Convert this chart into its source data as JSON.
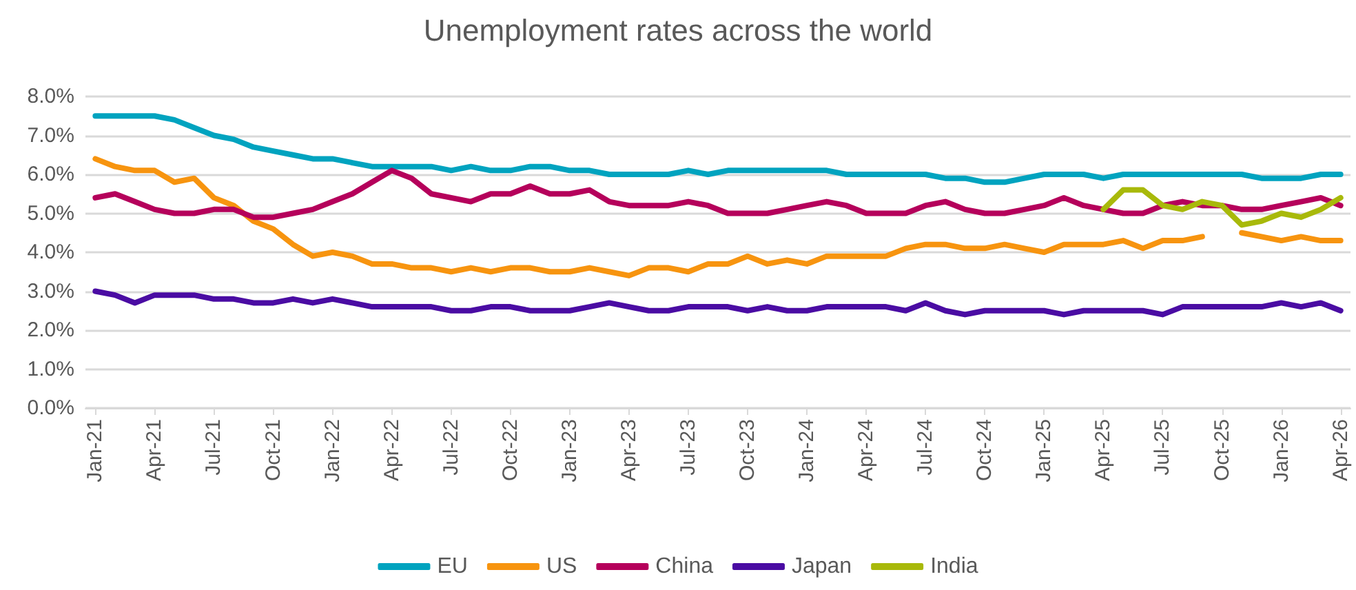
{
  "chart_data": {
    "type": "line",
    "title": "Unemployment rates across the world",
    "categories": [
      "Jan-21",
      null,
      null,
      "Apr-21",
      null,
      null,
      "Jul-21",
      null,
      null,
      "Oct-21",
      null,
      null,
      "Jan-22",
      null,
      null,
      "Apr-22",
      null,
      null,
      "Jul-22",
      null,
      null,
      "Oct-22",
      null,
      null,
      "Jan-23",
      null,
      null,
      "Apr-23",
      null,
      null,
      "Jul-23",
      null,
      null,
      "Oct-23",
      null,
      null,
      "Jan-24",
      null,
      null,
      "Apr-24",
      null,
      null,
      "Jul-24",
      null,
      null,
      "Oct-24",
      null,
      null,
      "Jan-25",
      null,
      null,
      "Apr-25",
      null,
      null,
      "Jul-25",
      null,
      null,
      "Oct-25",
      null,
      null,
      "Jan-26",
      null,
      null,
      "Apr-26"
    ],
    "series": [
      {
        "name": "EU",
        "color": "#00a3bf",
        "values": [
          7.5,
          7.5,
          7.5,
          7.5,
          7.4,
          7.2,
          7.0,
          6.9,
          6.7,
          6.6,
          6.5,
          6.4,
          6.4,
          6.3,
          6.2,
          6.2,
          6.2,
          6.2,
          6.1,
          6.2,
          6.1,
          6.1,
          6.2,
          6.2,
          6.1,
          6.1,
          6.0,
          6.0,
          6.0,
          6.0,
          6.1,
          6.0,
          6.1,
          6.1,
          6.1,
          6.1,
          6.1,
          6.1,
          6.0,
          6.0,
          6.0,
          6.0,
          6.0,
          5.9,
          5.9,
          5.8,
          5.8,
          5.9,
          6.0,
          6.0,
          6.0,
          5.9,
          6.0,
          6.0,
          6.0,
          6.0,
          6.0,
          6.0,
          6.0,
          5.9,
          5.9,
          5.9,
          6.0,
          6.0
        ]
      },
      {
        "name": "US",
        "color": "#f7940f",
        "values": [
          6.4,
          6.2,
          6.1,
          6.1,
          5.8,
          5.9,
          5.4,
          5.2,
          4.8,
          4.6,
          4.2,
          3.9,
          4.0,
          3.9,
          3.7,
          3.7,
          3.6,
          3.6,
          3.5,
          3.6,
          3.5,
          3.6,
          3.6,
          3.5,
          3.5,
          3.6,
          3.5,
          3.4,
          3.6,
          3.6,
          3.5,
          3.7,
          3.7,
          3.9,
          3.7,
          3.8,
          3.7,
          3.9,
          3.9,
          3.9,
          3.9,
          4.1,
          4.2,
          4.2,
          4.1,
          4.1,
          4.2,
          4.1,
          4.0,
          4.2,
          4.2,
          4.2,
          4.3,
          4.1,
          4.3,
          4.3,
          4.4,
          null,
          4.5,
          4.4,
          4.3,
          4.4,
          4.3,
          4.3
        ]
      },
      {
        "name": "China",
        "color": "#b5005b",
        "values": [
          5.4,
          5.5,
          5.3,
          5.1,
          5.0,
          5.0,
          5.1,
          5.1,
          4.9,
          4.9,
          5.0,
          5.1,
          5.3,
          5.5,
          5.8,
          6.1,
          5.9,
          5.5,
          5.4,
          5.3,
          5.5,
          5.5,
          5.7,
          5.5,
          5.5,
          5.6,
          5.3,
          5.2,
          5.2,
          5.2,
          5.3,
          5.2,
          5.0,
          5.0,
          5.0,
          5.1,
          5.2,
          5.3,
          5.2,
          5.0,
          5.0,
          5.0,
          5.2,
          5.3,
          5.1,
          5.0,
          5.0,
          5.1,
          5.2,
          5.4,
          5.2,
          5.1,
          5.0,
          5.0,
          5.2,
          5.3,
          5.2,
          5.2,
          5.1,
          5.1,
          5.2,
          5.3,
          5.4,
          5.2
        ]
      },
      {
        "name": "Japan",
        "color": "#4a0ca3",
        "values": [
          3.0,
          2.9,
          2.7,
          2.9,
          2.9,
          2.9,
          2.8,
          2.8,
          2.7,
          2.7,
          2.8,
          2.7,
          2.8,
          2.7,
          2.6,
          2.6,
          2.6,
          2.6,
          2.5,
          2.5,
          2.6,
          2.6,
          2.5,
          2.5,
          2.5,
          2.6,
          2.7,
          2.6,
          2.5,
          2.5,
          2.6,
          2.6,
          2.6,
          2.5,
          2.6,
          2.5,
          2.5,
          2.6,
          2.6,
          2.6,
          2.6,
          2.5,
          2.7,
          2.5,
          2.4,
          2.5,
          2.5,
          2.5,
          2.5,
          2.4,
          2.5,
          2.5,
          2.5,
          2.5,
          2.4,
          2.6,
          2.6,
          2.6,
          2.6,
          2.6,
          2.7,
          2.6,
          2.7,
          2.5
        ]
      },
      {
        "name": "India",
        "color": "#a8b90a",
        "values": [
          null,
          null,
          null,
          null,
          null,
          null,
          null,
          null,
          null,
          null,
          null,
          null,
          null,
          null,
          null,
          null,
          null,
          null,
          null,
          null,
          null,
          null,
          null,
          null,
          null,
          null,
          null,
          null,
          null,
          null,
          null,
          null,
          null,
          null,
          null,
          null,
          null,
          null,
          null,
          null,
          null,
          null,
          null,
          null,
          null,
          null,
          null,
          null,
          null,
          null,
          null,
          5.1,
          5.6,
          5.6,
          5.2,
          5.1,
          5.3,
          5.2,
          4.7,
          4.8,
          5.0,
          4.9,
          5.1,
          5.4
        ]
      }
    ],
    "ylim": [
      0,
      8
    ],
    "yticks": [
      {
        "value": 0,
        "label": "0.0%"
      },
      {
        "value": 1,
        "label": "1.0%"
      },
      {
        "value": 2,
        "label": "2.0%"
      },
      {
        "value": 3,
        "label": "3.0%"
      },
      {
        "value": 4,
        "label": "4.0%"
      },
      {
        "value": 5,
        "label": "5.0%"
      },
      {
        "value": 6,
        "label": "6.0%"
      },
      {
        "value": 7,
        "label": "7.0%"
      },
      {
        "value": 8,
        "label": "8.0%"
      }
    ],
    "grid": "y",
    "legend": "bottom",
    "marker": "none",
    "line_style": "solid"
  }
}
